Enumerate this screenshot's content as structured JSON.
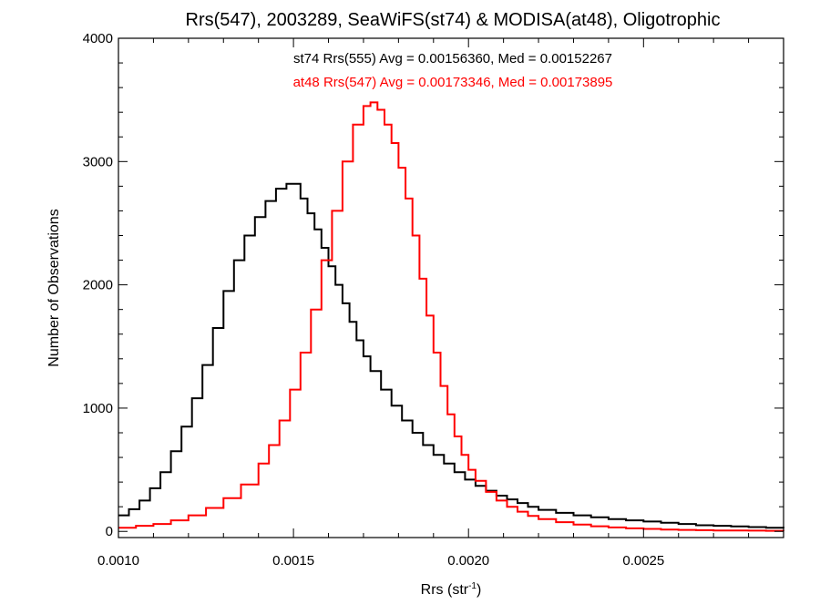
{
  "chart_data": {
    "type": "line",
    "title": "Rrs(547), 2003289, SeaWiFS(st74) & MODISA(at48), Oligotrophic",
    "xlabel_main": "Rrs (str",
    "xlabel_sup": "-1",
    "xlabel_end": ")",
    "ylabel": "Number of Observations",
    "xlim": [
      0.001,
      0.0029
    ],
    "ylim": [
      -50,
      4000
    ],
    "xticks": [
      0.001,
      0.0015,
      0.002,
      0.0025
    ],
    "xtick_labels": [
      "0.0010",
      "0.0015",
      "0.0020",
      "0.0025"
    ],
    "yticks": [
      0,
      1000,
      2000,
      3000,
      4000
    ],
    "ytick_labels": [
      "0",
      "1000",
      "2000",
      "3000",
      "4000"
    ],
    "step_style": "histogram",
    "grid": false,
    "annotations": [
      {
        "text": "st74 Rrs(555) Avg = 0.00156360, Med = 0.00152267",
        "color": "#000000"
      },
      {
        "text": "at48 Rrs(547) Avg = 0.00173346, Med = 0.00173895",
        "color": "#ff0000"
      }
    ],
    "series": [
      {
        "color": "#000000",
        "x": [
          0.001,
          0.00103,
          0.00106,
          0.00109,
          0.00112,
          0.00115,
          0.00118,
          0.00121,
          0.00124,
          0.00127,
          0.0013,
          0.00133,
          0.00136,
          0.00139,
          0.00142,
          0.00145,
          0.00148,
          0.0015,
          0.00152,
          0.00154,
          0.00156,
          0.00158,
          0.0016,
          0.00162,
          0.00164,
          0.00166,
          0.00168,
          0.0017,
          0.00172,
          0.00175,
          0.00178,
          0.00181,
          0.00184,
          0.00187,
          0.0019,
          0.00193,
          0.00196,
          0.00199,
          0.00202,
          0.00205,
          0.00208,
          0.00211,
          0.00214,
          0.00217,
          0.0022,
          0.00225,
          0.0023,
          0.00235,
          0.0024,
          0.00245,
          0.0025,
          0.00255,
          0.0026,
          0.00265,
          0.0027,
          0.00275,
          0.0028,
          0.00285,
          0.0029
        ],
        "y": [
          130,
          180,
          250,
          350,
          480,
          650,
          850,
          1080,
          1350,
          1650,
          1950,
          2200,
          2400,
          2550,
          2680,
          2780,
          2820,
          2820,
          2700,
          2580,
          2450,
          2300,
          2150,
          2000,
          1850,
          1700,
          1550,
          1420,
          1300,
          1150,
          1020,
          900,
          800,
          700,
          620,
          550,
          480,
          420,
          370,
          330,
          290,
          260,
          230,
          200,
          175,
          150,
          130,
          115,
          100,
          90,
          80,
          70,
          60,
          50,
          45,
          40,
          35,
          30,
          25
        ]
      },
      {
        "color": "#ff0000",
        "x": [
          0.001,
          0.00105,
          0.0011,
          0.00115,
          0.0012,
          0.00125,
          0.0013,
          0.00135,
          0.0014,
          0.00143,
          0.00146,
          0.00149,
          0.00152,
          0.00155,
          0.00158,
          0.00161,
          0.00164,
          0.00167,
          0.0017,
          0.00172,
          0.00174,
          0.00176,
          0.00178,
          0.0018,
          0.00182,
          0.00184,
          0.00186,
          0.00188,
          0.0019,
          0.00192,
          0.00194,
          0.00196,
          0.00198,
          0.002,
          0.00202,
          0.00205,
          0.00208,
          0.00211,
          0.00214,
          0.00217,
          0.0022,
          0.00225,
          0.0023,
          0.00235,
          0.0024,
          0.00245,
          0.0025,
          0.00255,
          0.0026,
          0.00265,
          0.0027,
          0.00275,
          0.0028,
          0.00285,
          0.0029
        ],
        "y": [
          30,
          45,
          60,
          90,
          130,
          190,
          270,
          380,
          550,
          700,
          900,
          1150,
          1450,
          1800,
          2200,
          2600,
          3000,
          3300,
          3450,
          3480,
          3420,
          3300,
          3150,
          2950,
          2700,
          2400,
          2050,
          1750,
          1450,
          1180,
          950,
          770,
          620,
          500,
          410,
          320,
          250,
          200,
          160,
          125,
          100,
          75,
          55,
          42,
          32,
          25,
          20,
          15,
          12,
          10,
          8,
          7,
          6,
          5,
          4
        ]
      }
    ]
  }
}
